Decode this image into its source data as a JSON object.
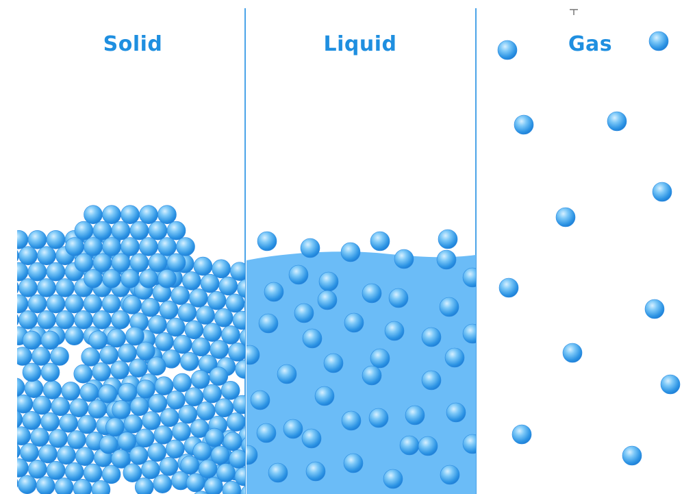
{
  "panels": [
    {
      "id": "solid",
      "title": "Solid"
    },
    {
      "id": "liquid",
      "title": "Liquid"
    },
    {
      "id": "gas",
      "title": "Gas"
    }
  ],
  "colors": {
    "title": "#1f8fe0",
    "divider": "#4aa3e8",
    "particle_light": "#bfe6ff",
    "particle_mid": "#5cb8f5",
    "particle_dark": "#1f86db",
    "liquid_fill": "#6bbcf7"
  }
}
